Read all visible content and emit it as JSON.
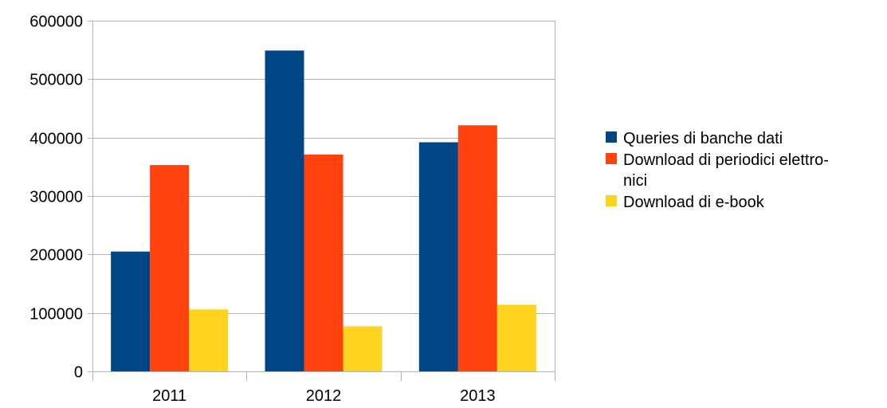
{
  "chart_data": {
    "type": "bar",
    "categories": [
      "2011",
      "2012",
      "2013"
    ],
    "series": [
      {
        "name": "Queries di banche dati",
        "color": "#004586",
        "values": [
          205000,
          549000,
          392000
        ]
      },
      {
        "name": "Download di periodici elettronici",
        "color": "#ff420e",
        "values": [
          353000,
          371000,
          421000
        ]
      },
      {
        "name": "Download di e-book",
        "color": "#ffd320",
        "values": [
          106000,
          77000,
          114000
        ]
      }
    ],
    "legend_lines": [
      [
        "Queries di banche dati"
      ],
      [
        "Download di periodici elettro-",
        "nici"
      ],
      [
        "Download di e-book"
      ]
    ],
    "y_ticks": [
      "0",
      "100000",
      "200000",
      "300000",
      "400000",
      "500000",
      "600000"
    ],
    "ylim": [
      0,
      600000
    ],
    "grid": true,
    "legend_position": "right",
    "title": "",
    "xlabel": "",
    "ylabel": ""
  }
}
